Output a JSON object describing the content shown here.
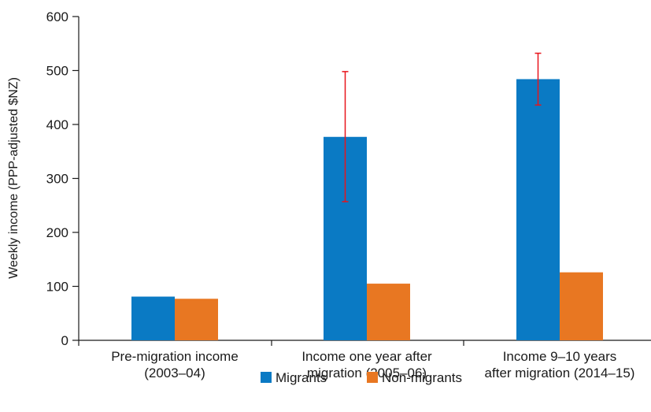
{
  "chart_data": {
    "type": "bar",
    "title": "",
    "ylabel": "Weekly income (PPP-adjusted $NZ)",
    "xlabel": "",
    "ylim": [
      0,
      600
    ],
    "yticks": [
      0,
      100,
      200,
      300,
      400,
      500,
      600
    ],
    "categories": [
      [
        "Pre-migration income",
        "(2003–04)"
      ],
      [
        "Income one year after",
        "migration (2005–06)"
      ],
      [
        "Income 9–10 years",
        "after migration (2014–15)"
      ]
    ],
    "series": [
      {
        "name": "Migrants",
        "color": "#0a7ac4",
        "values": [
          81,
          377,
          484
        ],
        "error_low": [
          null,
          257,
          436
        ],
        "error_high": [
          null,
          498,
          532
        ]
      },
      {
        "name": "Non-migrants",
        "color": "#e87722",
        "values": [
          77,
          105,
          126
        ]
      }
    ],
    "error_bar_color": "#e8141b",
    "legend_position": "bottom",
    "grid": false
  }
}
